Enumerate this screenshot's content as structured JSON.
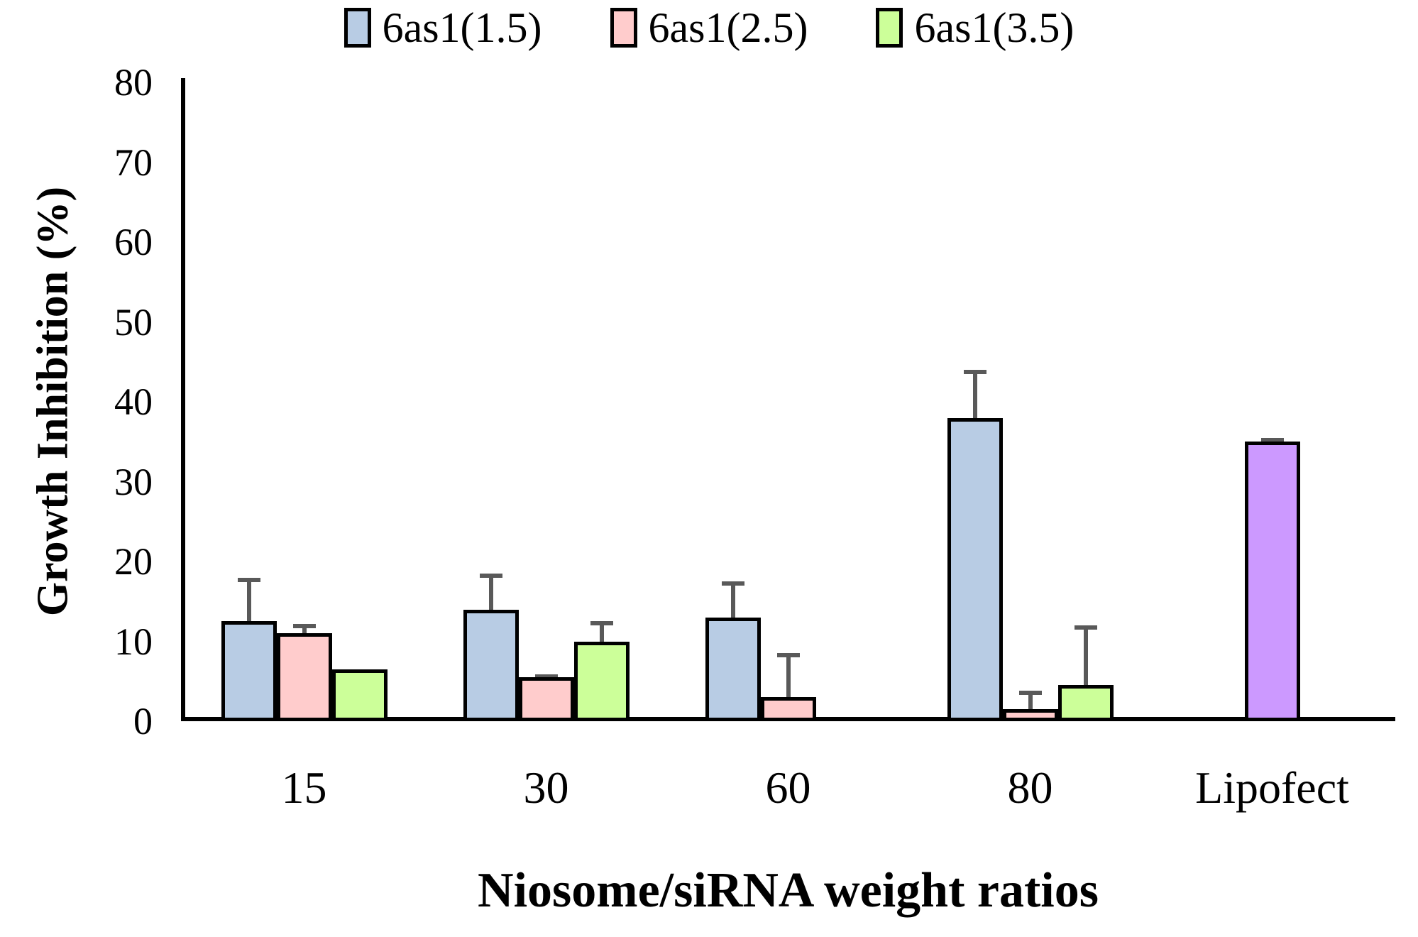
{
  "chart_data": {
    "type": "bar",
    "title": "",
    "xlabel": "Niosome/siRNA weight ratios",
    "ylabel": "Growth Inhibition (%)",
    "ylim": [
      0,
      80
    ],
    "yticks": [
      0,
      10,
      20,
      30,
      40,
      50,
      60,
      70,
      80
    ],
    "grid": false,
    "legend_position": "top-center",
    "categories": [
      "15",
      "30",
      "60",
      "80",
      "Lipofect"
    ],
    "series": [
      {
        "name": "6as1(1.5)",
        "color": "#b8cce4",
        "in_legend": true,
        "values": [
          12.5,
          14,
          13,
          38,
          null
        ],
        "errors": [
          5.5,
          4.5,
          4.5,
          6,
          null
        ]
      },
      {
        "name": "6as1(2.5)",
        "color": "#ffcccc",
        "in_legend": true,
        "values": [
          11,
          5.5,
          3,
          1.5,
          null
        ],
        "errors": [
          1.2,
          0.4,
          5.5,
          2.3,
          null
        ]
      },
      {
        "name": "6as1(3.5)",
        "color": "#ccff99",
        "in_legend": true,
        "values": [
          6.5,
          10,
          null,
          4.5,
          null
        ],
        "errors": [
          0,
          2.5,
          null,
          7.5,
          null
        ]
      },
      {
        "name": "Lipofect",
        "color": "#cc99ff",
        "in_legend": false,
        "single_centered": true,
        "values": [
          null,
          null,
          null,
          null,
          35
        ],
        "errors": [
          null,
          null,
          null,
          null,
          0.5
        ]
      }
    ],
    "bar_border_color": "#000000",
    "error_bar_color": "#595959",
    "axis_color": "#000000"
  }
}
